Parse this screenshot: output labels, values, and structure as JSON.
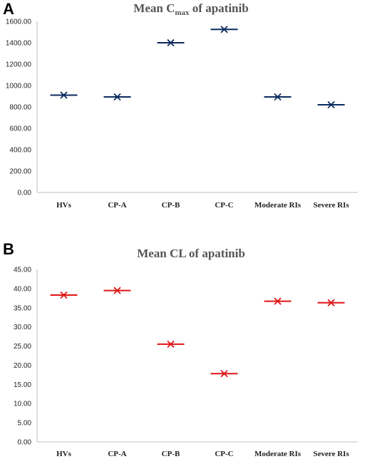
{
  "chart_data": [
    {
      "panel": "A",
      "type": "scatter",
      "title": "Mean C",
      "title_subscript": "max",
      "title_suffix": " of apatinib",
      "categories": [
        "HVs",
        "CP-A",
        "CP-B",
        "CP-C",
        "Moderate RIs",
        "Severe RIs"
      ],
      "values": [
        910,
        893,
        1400,
        1525,
        893,
        820
      ],
      "ylim": [
        0,
        1600
      ],
      "yticks": [
        "0.00",
        "200.00",
        "400.00",
        "600.00",
        "800.00",
        "1000.00",
        "1200.00",
        "1400.00",
        "1600.00"
      ],
      "grid": false,
      "color": "#0b2a5e"
    },
    {
      "panel": "B",
      "type": "scatter",
      "title": "Mean CL of apatinib",
      "categories": [
        "HVs",
        "CP-A",
        "CP-B",
        "CP-C",
        "Moderate RIs",
        "Severe RIs"
      ],
      "values": [
        38.3,
        39.5,
        25.5,
        17.8,
        36.7,
        36.3
      ],
      "ylim": [
        0,
        45
      ],
      "yticks": [
        "0.00",
        "5.00",
        "10.00",
        "15.00",
        "20.00",
        "25.00",
        "30.00",
        "35.00",
        "40.00",
        "45.00"
      ],
      "grid": false,
      "color": "#e01414"
    }
  ]
}
